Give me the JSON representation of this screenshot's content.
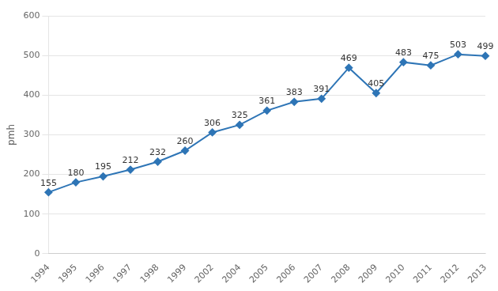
{
  "chart_data": {
    "type": "line",
    "categories": [
      "1994",
      "1995",
      "1996",
      "1997",
      "1998",
      "1999",
      "2002",
      "2004",
      "2005",
      "2006",
      "2007",
      "2008",
      "2009",
      "2010",
      "2011",
      "2012",
      "2013"
    ],
    "values": [
      155,
      180,
      195,
      212,
      232,
      260,
      306,
      325,
      361,
      383,
      391,
      469,
      405,
      483,
      475,
      503,
      499
    ],
    "color": "#2E75B6",
    "marker": "diamond",
    "ylabel": "pmh",
    "ylim": [
      0,
      600
    ],
    "yticks": [
      0,
      100,
      200,
      300,
      400,
      500,
      600
    ],
    "grid": true,
    "data_labels": true
  }
}
